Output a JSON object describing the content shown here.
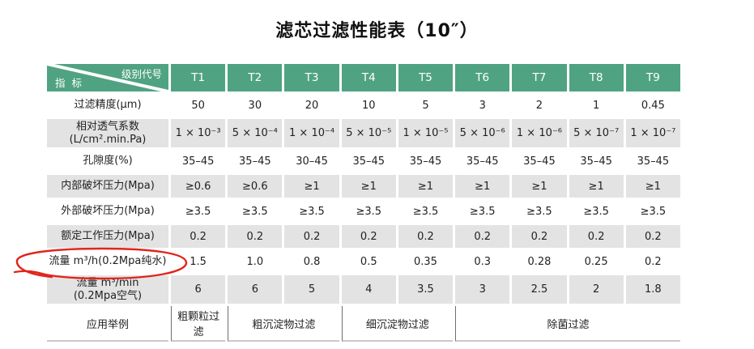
{
  "title": "滤芯过滤性能表（10″）",
  "colors": {
    "header_green": "#50a382",
    "shaded_row_gray": "#e3e3e3",
    "annotation_red": "#e1251b"
  },
  "table": {
    "corner": {
      "top_right": "级别代号",
      "bottom_left": "指  标"
    },
    "columns": [
      "T1",
      "T2",
      "T3",
      "T4",
      "T5",
      "T6",
      "T7",
      "T8",
      "T9"
    ],
    "rows": [
      {
        "label_lines": [
          "过滤精度(μm)"
        ],
        "shaded": false,
        "values": [
          "50",
          "30",
          "20",
          "10",
          "5",
          "3",
          "2",
          "1",
          "0.45"
        ]
      },
      {
        "label_lines": [
          "相对透气系数",
          "(L/cm².min.Pa)"
        ],
        "shaded": true,
        "values": [
          "1 × 10⁻³",
          "5 × 10⁻⁴",
          "1 × 10⁻⁴",
          "5 × 10⁻⁵",
          "1 × 10⁻⁵",
          "5 × 10⁻⁶",
          "1 × 10⁻⁶",
          "5 × 10⁻⁷",
          "1 × 10⁻⁷"
        ]
      },
      {
        "label_lines": [
          "孔隙度(%)"
        ],
        "shaded": false,
        "values": [
          "35–45",
          "35–45",
          "30–45",
          "35–45",
          "35–45",
          "35–45",
          "35–45",
          "35–45",
          "35–45"
        ]
      },
      {
        "label_lines": [
          "内部破坏压力(Mpa)"
        ],
        "shaded": true,
        "values": [
          "≥0.6",
          "≥0.6",
          "≥1",
          "≥1",
          "≥1",
          "≥1",
          "≥1",
          "≥1",
          "≥1"
        ]
      },
      {
        "label_lines": [
          "外部破坏压力(Mpa)"
        ],
        "shaded": false,
        "values": [
          "≥3.5",
          "≥3.5",
          "≥3.5",
          "≥3.5",
          "≥3.5",
          "≥3.5",
          "≥3.5",
          "≥3.5",
          "≥3.5"
        ]
      },
      {
        "label_lines": [
          "额定工作压力(Mpa)"
        ],
        "shaded": true,
        "values": [
          "0.2",
          "0.2",
          "0.2",
          "0.2",
          "0.2",
          "0.2",
          "0.2",
          "0.2",
          "0.2"
        ]
      },
      {
        "label_lines": [
          "流量 m³/h(0.2Mpa纯水)"
        ],
        "shaded": false,
        "annotated": true,
        "values": [
          "1.5",
          "1.0",
          "0.8",
          "0.5",
          "0.35",
          "0.3",
          "0.28",
          "0.25",
          "0.2"
        ]
      },
      {
        "label_lines": [
          "流量 m³/min",
          "(0.2Mpa空气)"
        ],
        "shaded": true,
        "values": [
          "6",
          "6",
          "5",
          "4",
          "3.5",
          "3",
          "2.5",
          "2",
          "1.8"
        ]
      }
    ],
    "application_row": {
      "label": "应用举例",
      "cells": [
        {
          "text": "粗颗粒过滤",
          "span": 1
        },
        {
          "text": "粗沉淀物过滤",
          "span": 2
        },
        {
          "text": "细沉淀物过滤",
          "span": 2
        },
        {
          "text": "除菌过滤",
          "span": 4
        }
      ]
    }
  },
  "annotation": {
    "shape": "hand-drawn red ellipse around 流量 m³/h(0.2Mpa纯水) row label"
  }
}
